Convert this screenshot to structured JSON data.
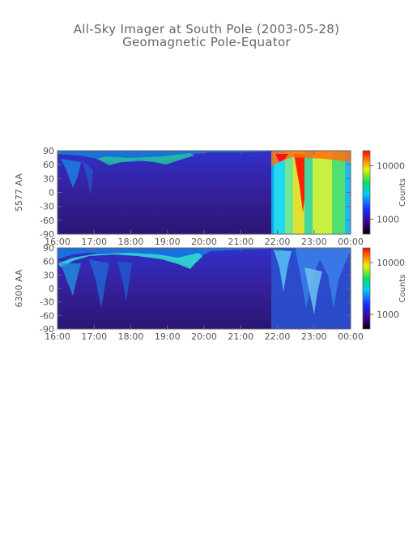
{
  "title": "All-Sky Imager at South Pole (2003-05-28)",
  "subtitle": "Geomagnetic Pole-Equator",
  "chart_data": [
    {
      "type": "heatmap",
      "ylabel": "5577 AA",
      "x_ticks": [
        "16:00",
        "17:00",
        "18:00",
        "19:00",
        "20:00",
        "21:00",
        "22:00",
        "23:00",
        "00:00"
      ],
      "y_ticks": [
        "90",
        "60",
        "30",
        "0",
        "-30",
        "-60",
        "-90"
      ],
      "ylim": [
        -90,
        90
      ],
      "colorbar": {
        "label": "Counts",
        "ticks": [
          "10000",
          "1000"
        ],
        "scale": "log"
      }
    },
    {
      "type": "heatmap",
      "ylabel": "6300 AA",
      "x_ticks": [
        "16:00",
        "17:00",
        "18:00",
        "19:00",
        "20:00",
        "21:00",
        "22:00",
        "23:00",
        "00:00"
      ],
      "y_ticks": [
        "90",
        "60",
        "30",
        "0",
        "-30",
        "-60",
        "-90"
      ],
      "ylim": [
        -90,
        90
      ],
      "colorbar": {
        "label": "Counts",
        "ticks": [
          "10000",
          "1000"
        ],
        "scale": "log"
      }
    }
  ]
}
